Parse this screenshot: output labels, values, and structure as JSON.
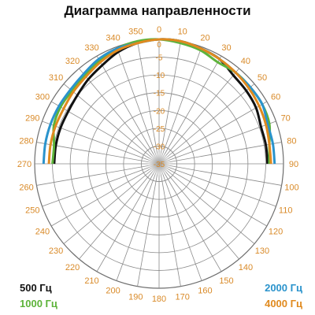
{
  "chart_data": {
    "type": "polar-line",
    "title": "Диаграмма направленности",
    "angle_ticks": [
      0,
      10,
      20,
      30,
      40,
      50,
      60,
      70,
      80,
      90,
      100,
      110,
      120,
      130,
      140,
      150,
      160,
      170,
      180,
      190,
      200,
      210,
      220,
      230,
      240,
      250,
      260,
      270,
      280,
      290,
      300,
      310,
      320,
      330,
      340,
      350
    ],
    "angle_direction": "clockwise",
    "angle_zero": "top",
    "radial_ticks": [
      0,
      -5,
      -10,
      -15,
      -20,
      -25,
      -30,
      -35
    ],
    "r_range": [
      -35,
      0
    ],
    "grid": true,
    "legend_placement": "bottom-corners",
    "series": [
      {
        "name": "500 Гц",
        "color": "#111111",
        "angles": [
          270,
          280,
          290,
          300,
          310,
          320,
          330,
          340,
          350,
          0,
          10,
          20,
          30,
          40,
          50,
          60,
          70,
          80,
          90
        ],
        "values": [
          -5.5,
          -5.5,
          -5.5,
          -5.5,
          -5.0,
          -4.0,
          -3.0,
          -1.5,
          -0.5,
          0,
          0,
          -0.5,
          -1.0,
          -2.5,
          -3.0,
          -3.5,
          -4.5,
          -4.5,
          -4.5
        ]
      },
      {
        "name": "1000 Гц",
        "color": "#5db33a",
        "angles": [
          270,
          280,
          290,
          300,
          310,
          320,
          330,
          340,
          350,
          0,
          10,
          20,
          30,
          40,
          50,
          60,
          70,
          80,
          90
        ],
        "values": [
          -5.0,
          -5.0,
          -3.5,
          -3.0,
          -3.0,
          -2.5,
          -1.5,
          -0.5,
          0,
          0,
          -0.5,
          -1.0,
          -2.0,
          -1.5,
          -1.5,
          -1.5,
          -2.0,
          -3.5,
          -4.0
        ]
      },
      {
        "name": "2000 Гц",
        "color": "#2a93cc",
        "angles": [
          270,
          280,
          290,
          300,
          310,
          320,
          330,
          340,
          350,
          0,
          10,
          20,
          30,
          40,
          50,
          60,
          70,
          80,
          90
        ],
        "values": [
          -2.5,
          -2.5,
          -2.5,
          -2.5,
          -2.5,
          -2.0,
          -1.0,
          -0.5,
          -0.5,
          0,
          0,
          -0.5,
          -1.0,
          -1.5,
          -1.5,
          -1.5,
          -2.5,
          -2.5,
          -2.5
        ]
      },
      {
        "name": "4000 Гц",
        "color": "#e08a1e",
        "angles": [
          270,
          280,
          290,
          300,
          310,
          320,
          330,
          340,
          350,
          0,
          10,
          20,
          30,
          40,
          50,
          60,
          70,
          80,
          90
        ],
        "values": [
          -4.0,
          -4.0,
          -4.0,
          -4.0,
          -3.5,
          -3.0,
          -2.0,
          -1.0,
          -0.5,
          0,
          0,
          -0.5,
          -1.0,
          -1.5,
          -2.0,
          -2.5,
          -3.0,
          -3.5,
          -3.5
        ]
      }
    ]
  }
}
